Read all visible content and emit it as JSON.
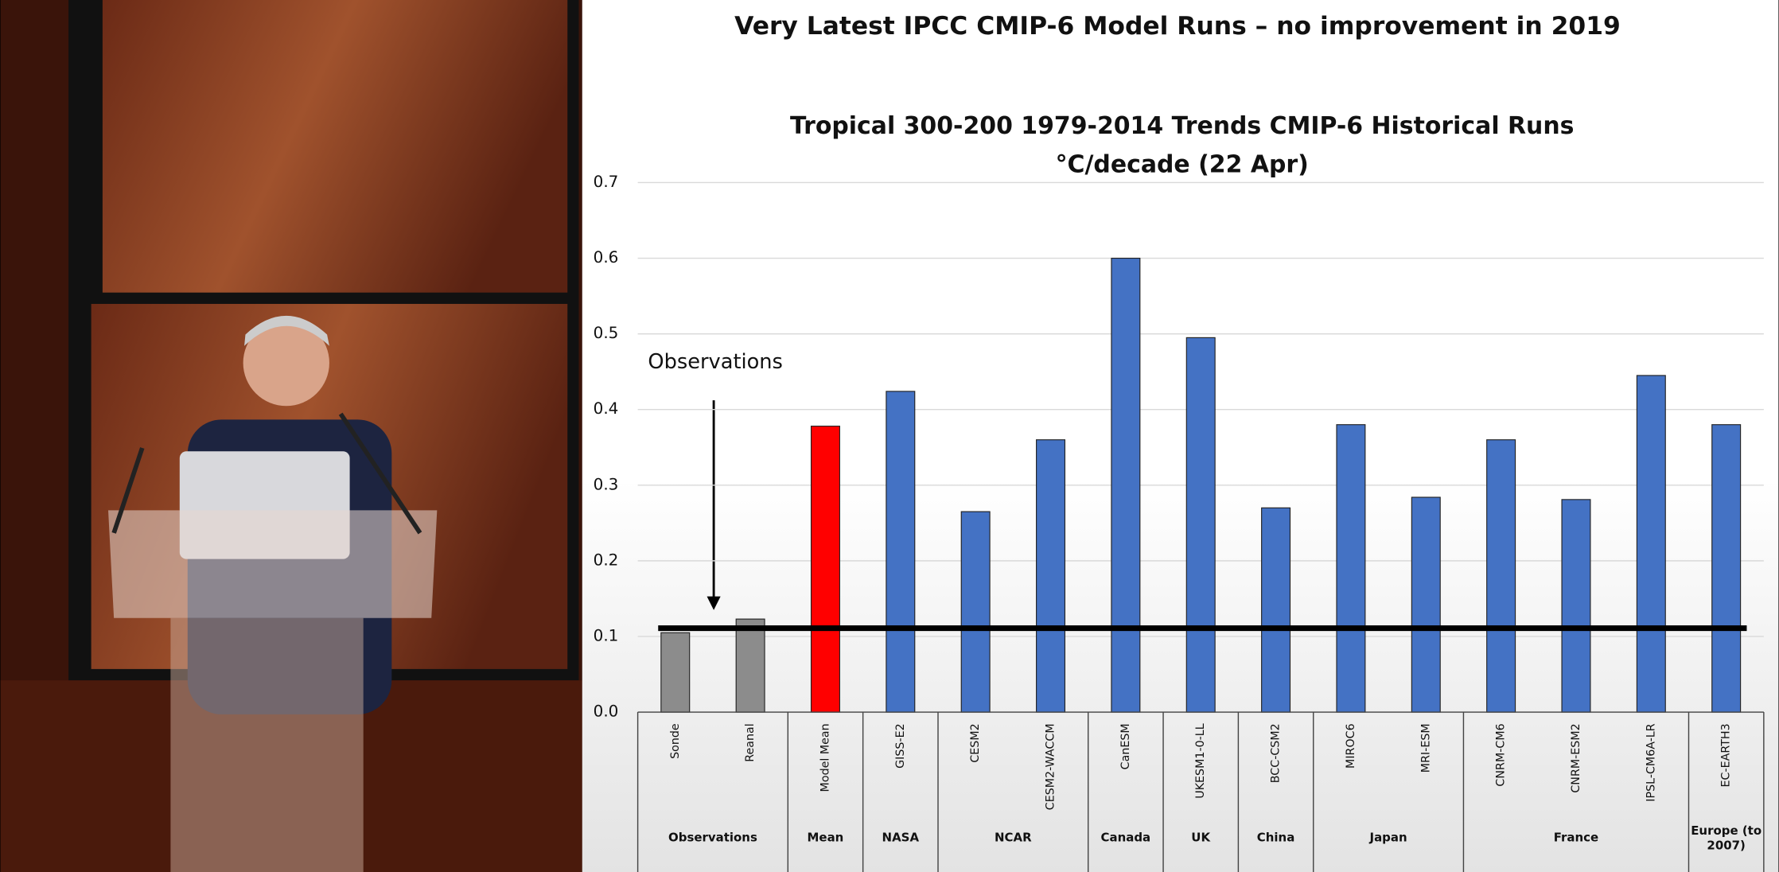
{
  "slide_title": "Very Latest IPCC CMIP-6 Model Runs – no improvement in 2019",
  "chart_data": {
    "type": "bar",
    "title": "Tropical 300-200 1979-2014 Trends CMIP-6 Historical Runs",
    "subtitle": "°C/decade (22 Apr)",
    "categories": [
      "Sonde",
      "Reanal",
      "Model Mean",
      "GISS-E2",
      "CESM2",
      "CESM2-WACCM",
      "CanESM",
      "UKESM1-0-LL",
      "BCC-CSM2",
      "MIROC6",
      "MRI-ESM",
      "CNRM-CM6",
      "CNRM-ESM2",
      "IPSL-CM6A-LR",
      "EC-EARTH3"
    ],
    "values": [
      0.105,
      0.123,
      0.378,
      0.424,
      0.265,
      0.36,
      0.6,
      0.495,
      0.27,
      0.38,
      0.284,
      0.36,
      0.281,
      0.445,
      0.38
    ],
    "colors": [
      "#8c8c8c",
      "#8c8c8c",
      "#ff0000",
      "#4472c4",
      "#4472c4",
      "#4472c4",
      "#4472c4",
      "#4472c4",
      "#4472c4",
      "#4472c4",
      "#4472c4",
      "#4472c4",
      "#4472c4",
      "#4472c4",
      "#4472c4"
    ],
    "groups": [
      {
        "label": "Observations",
        "span": 2
      },
      {
        "label": "Mean",
        "span": 1
      },
      {
        "label": "NASA",
        "span": 1
      },
      {
        "label": "NCAR",
        "span": 2
      },
      {
        "label": "Canada",
        "span": 1
      },
      {
        "label": "UK",
        "span": 1
      },
      {
        "label": "China",
        "span": 1
      },
      {
        "label": "Japan",
        "span": 2
      },
      {
        "label": "France",
        "span": 3
      },
      {
        "label": "Europe (to 2007)",
        "span": 1
      }
    ],
    "reference_line": 0.111,
    "annotation": "Observations",
    "ylim": [
      0,
      0.7
    ],
    "yticks": [
      {
        "value": 0,
        "label": "0.0"
      },
      {
        "value": 0.1,
        "label": "0.1"
      },
      {
        "value": 0.2,
        "label": "0.2"
      },
      {
        "value": 0.3,
        "label": "0.3"
      },
      {
        "value": 0.4,
        "label": "0.4"
      },
      {
        "value": 0.5,
        "label": "0.5"
      },
      {
        "value": 0.6,
        "label": "0.6"
      },
      {
        "value": 0.7,
        "label": "0.7"
      }
    ],
    "grid": true
  }
}
